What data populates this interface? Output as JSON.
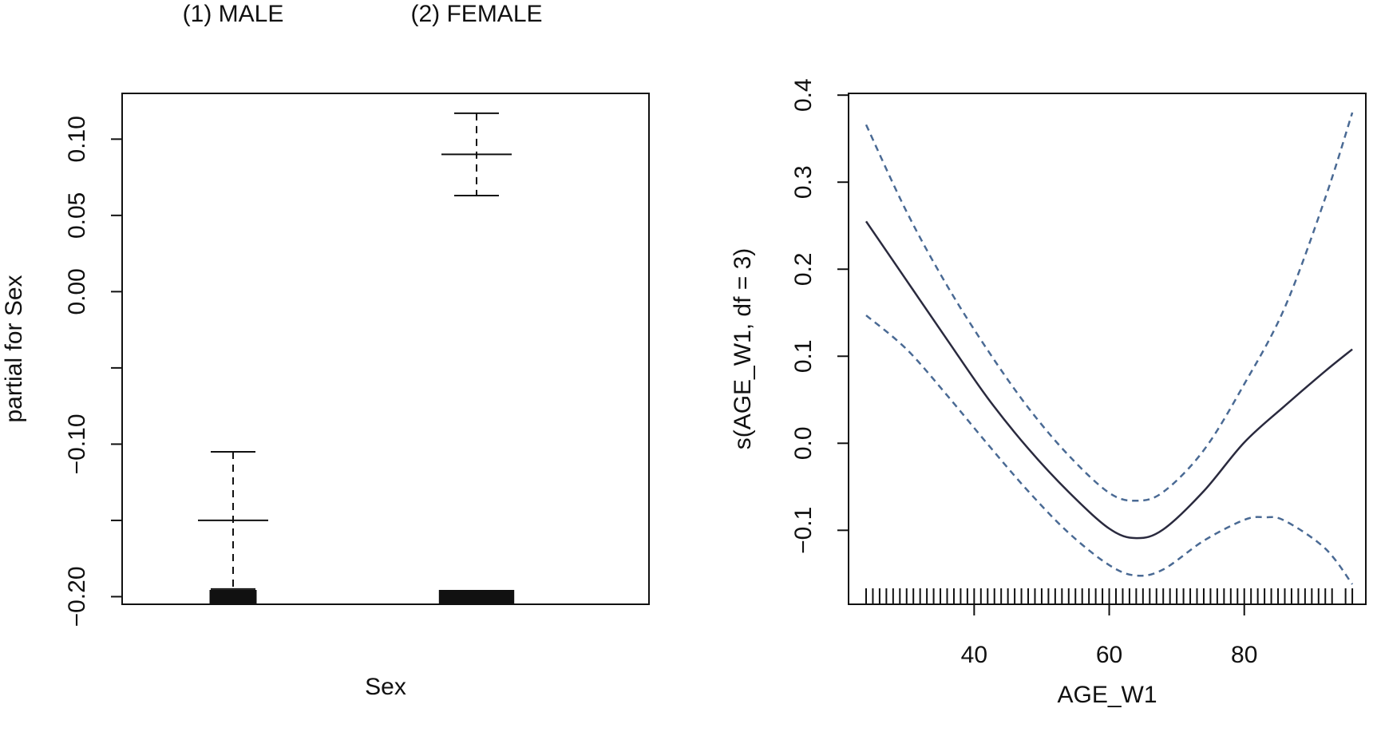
{
  "chart_data": [
    {
      "type": "box",
      "xlabel": "Sex",
      "ylabel": "partial for Sex",
      "categories": [
        "(1) MALE",
        "(2) FEMALE"
      ],
      "ylim": [
        -0.205,
        0.13
      ],
      "yticks": [
        -0.2,
        -0.15,
        -0.1,
        -0.05,
        0.0,
        0.05,
        0.1
      ],
      "ytick_labels": [
        "−0.20",
        "",
        "−0.10",
        "",
        "0.00",
        "0.05",
        "0.10"
      ],
      "series": [
        {
          "category": "(1) MALE",
          "estimate": -0.15,
          "lower": -0.195,
          "upper": -0.105
        },
        {
          "category": "(2) FEMALE",
          "estimate": 0.09,
          "lower": 0.063,
          "upper": 0.117
        }
      ],
      "rug_bars": [
        {
          "category": "(1) MALE",
          "relative_width": 0.5
        },
        {
          "category": "(2) FEMALE",
          "relative_width": 0.8
        }
      ],
      "colors": {
        "line": "#111111",
        "rug": "#111111"
      },
      "grid": false
    },
    {
      "type": "line",
      "xlabel": "AGE_W1",
      "ylabel": "s(AGE_W1, df = 3)",
      "xlim": [
        21.4,
        98.0
      ],
      "ylim": [
        -0.185,
        0.402
      ],
      "xticks": [
        40,
        60,
        80
      ],
      "xtick_labels": [
        "40",
        "60",
        "80"
      ],
      "yticks": [
        -0.1,
        0.0,
        0.1,
        0.2,
        0.3,
        0.4
      ],
      "ytick_labels": [
        "−0.1",
        "0.0",
        "0.1",
        "0.2",
        "0.3",
        "0.4"
      ],
      "series": [
        {
          "style": "solid",
          "x": [
            24,
            30,
            36,
            42,
            48,
            54,
            60,
            64,
            68,
            74,
            80,
            86,
            92,
            96
          ],
          "y": [
            0.255,
            0.187,
            0.119,
            0.052,
            -0.006,
            -0.056,
            -0.098,
            -0.109,
            -0.099,
            -0.055,
            0.001,
            0.043,
            0.083,
            0.108
          ]
        },
        {
          "style": "dashed",
          "x": [
            24,
            30,
            36,
            42,
            48,
            54,
            60,
            64,
            68,
            74,
            80,
            86,
            92,
            96
          ],
          "y": [
            0.366,
            0.266,
            0.181,
            0.107,
            0.041,
            -0.014,
            -0.057,
            -0.066,
            -0.056,
            -0.008,
            0.068,
            0.156,
            0.282,
            0.38
          ]
        },
        {
          "style": "dashed",
          "x": [
            24,
            30,
            36,
            42,
            48,
            54,
            60,
            64,
            68,
            74,
            80,
            83,
            86,
            92,
            96
          ],
          "y": [
            0.147,
            0.108,
            0.055,
            -0.001,
            -0.055,
            -0.103,
            -0.14,
            -0.152,
            -0.145,
            -0.112,
            -0.088,
            -0.085,
            -0.089,
            -0.121,
            -0.162
          ]
        }
      ],
      "rug": [
        24,
        25,
        26,
        27,
        28,
        29,
        30,
        31,
        32,
        33,
        34,
        35,
        36,
        37,
        38,
        39,
        40,
        41,
        42,
        43,
        44,
        45,
        46,
        47,
        48,
        49,
        50,
        51,
        52,
        53,
        54,
        55,
        56,
        57,
        58,
        59,
        60,
        61,
        62,
        63,
        64,
        65,
        66,
        67,
        68,
        69,
        70,
        71,
        72,
        73,
        74,
        75,
        76,
        77,
        78,
        79,
        80,
        81,
        82,
        83,
        84,
        85,
        86,
        87,
        88,
        89,
        90,
        91,
        92,
        93,
        95,
        96
      ],
      "colors": {
        "fit": "#2a2a3e",
        "bands": "#4a6a94",
        "rug": "#111111"
      },
      "grid": false
    }
  ]
}
